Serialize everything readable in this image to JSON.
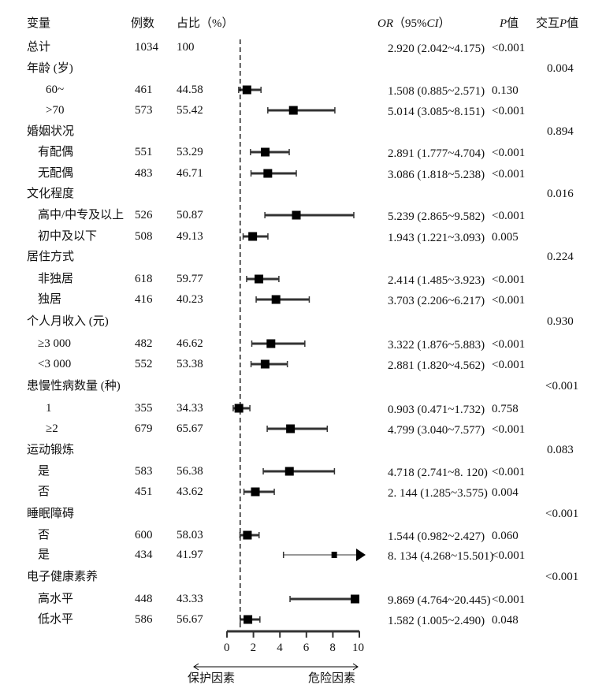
{
  "headers": {
    "variable": "变量",
    "n": "例数",
    "pct": "占比（%）",
    "or_italic": "OR",
    "or_rest": "（95%",
    "ci_italic": "CI",
    "ci_close": "）",
    "p_italic": "P",
    "p_rest": "值",
    "inter_prefix": "交互",
    "inter_p": "P",
    "inter_suffix": "值"
  },
  "chart_data": {
    "type": "forest",
    "xlim": [
      0,
      10
    ],
    "xticks": [
      "0",
      "2",
      "4",
      "6",
      "8",
      "10"
    ],
    "reference_line": 1,
    "left_label": "保护因素",
    "right_label": "危险因素",
    "rows": [
      {
        "label": "总计",
        "indent": 0,
        "n": "1034",
        "pct": "100",
        "or": null,
        "lo": null,
        "hi": null,
        "ci_text": "2.920 (2.042~4.175)",
        "p": "<0.001",
        "p_inter": ""
      },
      {
        "label": "年龄 (岁)",
        "indent": 0,
        "n": "",
        "pct": "",
        "or": null,
        "ci_text": "",
        "p": "",
        "p_inter": "0.004"
      },
      {
        "label": "60~",
        "indent": 2,
        "n": "461",
        "pct": "44.58",
        "or": 1.508,
        "lo": 0.885,
        "hi": 2.571,
        "ci_text": "1.508 (0.885~2.571)",
        "p": "0.130",
        "p_inter": ""
      },
      {
        "label": ">70",
        "indent": 2,
        "n": "573",
        "pct": "55.42",
        "or": 5.014,
        "lo": 3.085,
        "hi": 8.151,
        "ci_text": "5.014 (3.085~8.151)",
        "p": "<0.001",
        "p_inter": ""
      },
      {
        "label": "婚姻状况",
        "indent": 0,
        "n": "",
        "pct": "",
        "or": null,
        "ci_text": "",
        "p": "",
        "p_inter": "0.894"
      },
      {
        "label": "有配偶",
        "indent": 1,
        "n": "551",
        "pct": "53.29",
        "or": 2.891,
        "lo": 1.777,
        "hi": 4.704,
        "ci_text": "2.891 (1.777~4.704)",
        "p": "<0.001",
        "p_inter": ""
      },
      {
        "label": "无配偶",
        "indent": 1,
        "n": "483",
        "pct": "46.71",
        "or": 3.086,
        "lo": 1.818,
        "hi": 5.238,
        "ci_text": "3.086 (1.818~5.238)",
        "p": "<0.001",
        "p_inter": ""
      },
      {
        "label": "文化程度",
        "indent": 0,
        "n": "",
        "pct": "",
        "or": null,
        "ci_text": "",
        "p": "",
        "p_inter": "0.016"
      },
      {
        "label": "高中/中专及以上",
        "indent": 1,
        "n": "526",
        "pct": "50.87",
        "or": 5.239,
        "lo": 2.865,
        "hi": 9.582,
        "ci_text": "5.239 (2.865~9.582)",
        "p": "<0.001",
        "p_inter": ""
      },
      {
        "label": "初中及以下",
        "indent": 1,
        "n": "508",
        "pct": "49.13",
        "or": 1.943,
        "lo": 1.221,
        "hi": 3.093,
        "ci_text": "1.943 (1.221~3.093)",
        "p": "0.005",
        "p_inter": ""
      },
      {
        "label": "居住方式",
        "indent": 0,
        "n": "",
        "pct": "",
        "or": null,
        "ci_text": "",
        "p": "",
        "p_inter": "0.224"
      },
      {
        "label": "非独居",
        "indent": 1,
        "n": "618",
        "pct": "59.77",
        "or": 2.414,
        "lo": 1.485,
        "hi": 3.923,
        "ci_text": "2.414 (1.485~3.923)",
        "p": "<0.001",
        "p_inter": ""
      },
      {
        "label": "独居",
        "indent": 1,
        "n": "416",
        "pct": "40.23",
        "or": 3.703,
        "lo": 2.206,
        "hi": 6.217,
        "ci_text": "3.703 (2.206~6.217)",
        "p": "<0.001",
        "p_inter": ""
      },
      {
        "label": "个人月收入 (元)",
        "indent": 0,
        "n": "",
        "pct": "",
        "or": null,
        "ci_text": "",
        "p": "",
        "p_inter": "0.930"
      },
      {
        "label": "≥3 000",
        "indent": 1,
        "n": "482",
        "pct": "46.62",
        "or": 3.322,
        "lo": 1.876,
        "hi": 5.883,
        "ci_text": "3.322 (1.876~5.883)",
        "p": "<0.001",
        "p_inter": ""
      },
      {
        "label": "<3 000",
        "indent": 1,
        "n": "552",
        "pct": "53.38",
        "or": 2.881,
        "lo": 1.82,
        "hi": 4.562,
        "ci_text": "2.881 (1.820~4.562)",
        "p": "<0.001",
        "p_inter": ""
      },
      {
        "label": "患慢性病数量 (种)",
        "indent": 0,
        "n": "",
        "pct": "",
        "or": null,
        "ci_text": "",
        "p": "",
        "p_inter": "<0.001"
      },
      {
        "label": "1",
        "indent": 2,
        "n": "355",
        "pct": "34.33",
        "or": 0.903,
        "lo": 0.471,
        "hi": 1.732,
        "ci_text": "0.903 (0.471~1.732)",
        "p": "0.758",
        "p_inter": ""
      },
      {
        "label": "≥2",
        "indent": 2,
        "n": "679",
        "pct": "65.67",
        "or": 4.799,
        "lo": 3.04,
        "hi": 7.577,
        "ci_text": "4.799 (3.040~7.577)",
        "p": "<0.001",
        "p_inter": ""
      },
      {
        "label": "运动锻炼",
        "indent": 0,
        "n": "",
        "pct": "",
        "or": null,
        "ci_text": "",
        "p": "",
        "p_inter": "0.083"
      },
      {
        "label": "是",
        "indent": 1,
        "n": "583",
        "pct": "56.38",
        "or": 4.718,
        "lo": 2.741,
        "hi": 8.12,
        "ci_text": "4.718 (2.741~8. 120)",
        "p": "<0.001",
        "p_inter": ""
      },
      {
        "label": "否",
        "indent": 1,
        "n": "451",
        "pct": "43.62",
        "or": 2.144,
        "lo": 1.285,
        "hi": 3.575,
        "ci_text": "2. 144 (1.285~3.575)",
        "p": "0.004",
        "p_inter": ""
      },
      {
        "label": "睡眠障碍",
        "indent": 0,
        "n": "",
        "pct": "",
        "or": null,
        "ci_text": "",
        "p": "",
        "p_inter": "<0.001"
      },
      {
        "label": "否",
        "indent": 1,
        "n": "600",
        "pct": "58.03",
        "or": 1.544,
        "lo": 0.982,
        "hi": 2.427,
        "ci_text": "1.544 (0.982~2.427)",
        "p": "0.060",
        "p_inter": ""
      },
      {
        "label": "是",
        "indent": 1,
        "n": "434",
        "pct": "41.97",
        "or": 8.134,
        "lo": 4.268,
        "hi": 15.501,
        "arrow": true,
        "thin": true,
        "ci_text": "8. 134 (4.268~15.501)",
        "p": "<0.001",
        "p_inter": ""
      },
      {
        "label": "电子健康素养",
        "indent": 0,
        "n": "",
        "pct": "",
        "or": null,
        "ci_text": "",
        "p": "",
        "p_inter": "<0.001"
      },
      {
        "label": "高水平",
        "indent": 1,
        "n": "448",
        "pct": "43.33",
        "or": 9.869,
        "lo": 4.764,
        "hi": 20.445,
        "ci_text": "9.869 (4.764~20.445)",
        "p": "<0.001",
        "p_inter": ""
      },
      {
        "label": "低水平",
        "indent": 1,
        "n": "586",
        "pct": "56.67",
        "or": 1.582,
        "lo": 1.005,
        "hi": 2.49,
        "ci_text": "1.582 (1.005~2.490)",
        "p": "0.048",
        "p_inter": ""
      }
    ]
  }
}
